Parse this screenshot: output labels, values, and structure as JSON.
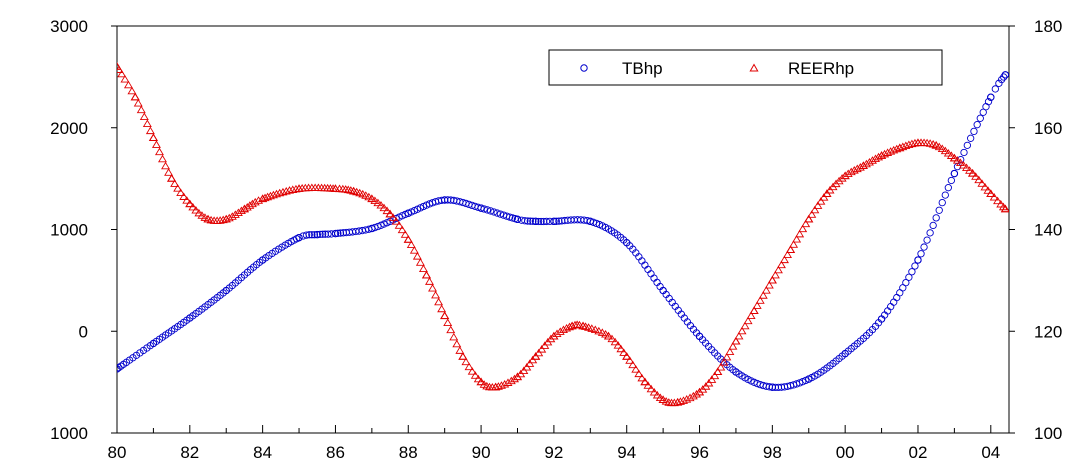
{
  "chart_data": {
    "type": "scatter",
    "title": "",
    "xlabel": "",
    "ylabel": "",
    "y2label": "",
    "x_range": [
      1980.0,
      2004.5
    ],
    "x_tick_values": [
      1980,
      1982,
      1984,
      1986,
      1988,
      1990,
      1992,
      1994,
      1996,
      1998,
      2000,
      2002,
      2004
    ],
    "x_tick_labels": [
      "80",
      "82",
      "84",
      "86",
      "88",
      "90",
      "92",
      "94",
      "96",
      "98",
      "00",
      "02",
      "04"
    ],
    "left_axis": {
      "range": [
        -1000,
        3000
      ],
      "ticks": [
        -1000,
        0,
        1000,
        2000,
        3000
      ],
      "tick_labels": [
        "1000",
        "0",
        "1000",
        "2000",
        "3000"
      ]
    },
    "right_axis": {
      "range": [
        100,
        180
      ],
      "ticks": [
        100,
        120,
        140,
        160,
        180
      ],
      "tick_labels": [
        "100",
        "120",
        "140",
        "160",
        "180"
      ]
    },
    "grid": false,
    "legend_position": "top-right",
    "series": [
      {
        "name": "TBhp",
        "axis": "left",
        "marker": "circle",
        "color": "#0000cc",
        "x": [
          1980.0,
          1981.0,
          1982.0,
          1983.0,
          1984.0,
          1985.0,
          1985.5,
          1986.0,
          1987.0,
          1988.0,
          1989.0,
          1990.0,
          1991.0,
          1991.5,
          1992.0,
          1993.0,
          1994.0,
          1995.0,
          1996.0,
          1997.0,
          1998.0,
          1999.0,
          2000.0,
          2001.0,
          2002.0,
          2003.0,
          2004.0,
          2004.4
        ],
        "y": [
          -370,
          -120,
          130,
          400,
          700,
          920,
          950,
          960,
          1010,
          1160,
          1290,
          1210,
          1100,
          1080,
          1080,
          1080,
          870,
          400,
          -50,
          -400,
          -550,
          -470,
          -220,
          120,
          700,
          1550,
          2300,
          2520
        ]
      },
      {
        "name": "REERhp",
        "axis": "right",
        "marker": "triangle",
        "color": "#e00000",
        "x": [
          1980.0,
          1980.5,
          1981.0,
          1981.5,
          1982.0,
          1982.5,
          1983.0,
          1983.5,
          1984.0,
          1985.0,
          1986.0,
          1986.5,
          1987.0,
          1987.5,
          1988.0,
          1988.5,
          1989.0,
          1989.5,
          1990.0,
          1990.4,
          1991.0,
          1991.5,
          1992.0,
          1992.5,
          1992.8,
          1993.5,
          1994.0,
          1994.5,
          1995.0,
          1995.4,
          1996.0,
          1996.5,
          1997.0,
          1997.5,
          1998.0,
          1998.5,
          1999.0,
          1999.5,
          2000.0,
          2000.5,
          2001.0,
          2001.5,
          2002.0,
          2002.5,
          2003.0,
          2003.5,
          2004.0,
          2004.4
        ],
        "y": [
          172,
          166,
          158,
          150,
          145,
          142,
          142,
          144,
          146,
          148,
          148,
          147.5,
          146,
          143,
          138,
          131,
          123,
          115,
          110,
          109,
          111,
          115,
          119,
          121,
          121,
          119,
          115,
          110,
          106.5,
          106,
          108,
          112,
          118,
          124,
          130,
          136,
          142,
          147,
          150.5,
          152.5,
          154.5,
          156,
          157,
          156.5,
          154,
          151,
          147,
          144
        ]
      }
    ]
  }
}
